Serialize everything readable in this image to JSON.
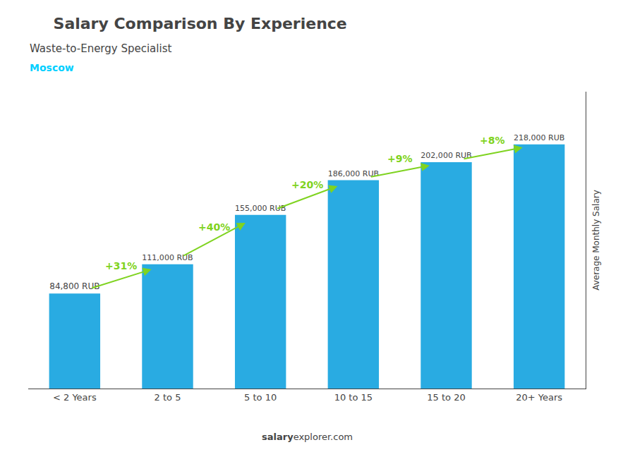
{
  "chart_data": {
    "type": "bar",
    "title": "Salary Comparison By Experience",
    "subtitle": "Waste-to-Energy Specialist",
    "city": "Moscow",
    "city_color": "#00CFFF",
    "ylabel": "Average Monthly Salary",
    "categories": [
      "< 2 Years",
      "2 to 5",
      "5 to 10",
      "10 to 15",
      "15 to 20",
      "20+ Years"
    ],
    "values": [
      84800,
      111000,
      155000,
      186000,
      202000,
      218000
    ],
    "value_labels": [
      "84,800 RUB",
      "111,000 RUB",
      "155,000 RUB",
      "186,000 RUB",
      "202,000 RUB",
      "218,000 RUB"
    ],
    "data_labels": true,
    "color": "#29ABE2",
    "ylim": [
      0,
      265000
    ],
    "yticks": [],
    "tick_labels": "x",
    "grid": false,
    "annotations": [
      {
        "text": "+31%",
        "from": "< 2 Years",
        "to": "2 to 5",
        "color": "#7FD320"
      },
      {
        "text": "+40%",
        "from": "2 to 5",
        "to": "5 to 10",
        "color": "#7FD320"
      },
      {
        "text": "+20%",
        "from": "5 to 10",
        "to": "10 to 15",
        "color": "#7FD320"
      },
      {
        "text": "+9%",
        "from": "10 to 15",
        "to": "15 to 20",
        "color": "#7FD320"
      },
      {
        "text": "+8%",
        "from": "15 to 20",
        "to": "20+ Years",
        "color": "#7FD320"
      }
    ],
    "footer": [
      "salary",
      "explorer.com"
    ]
  }
}
